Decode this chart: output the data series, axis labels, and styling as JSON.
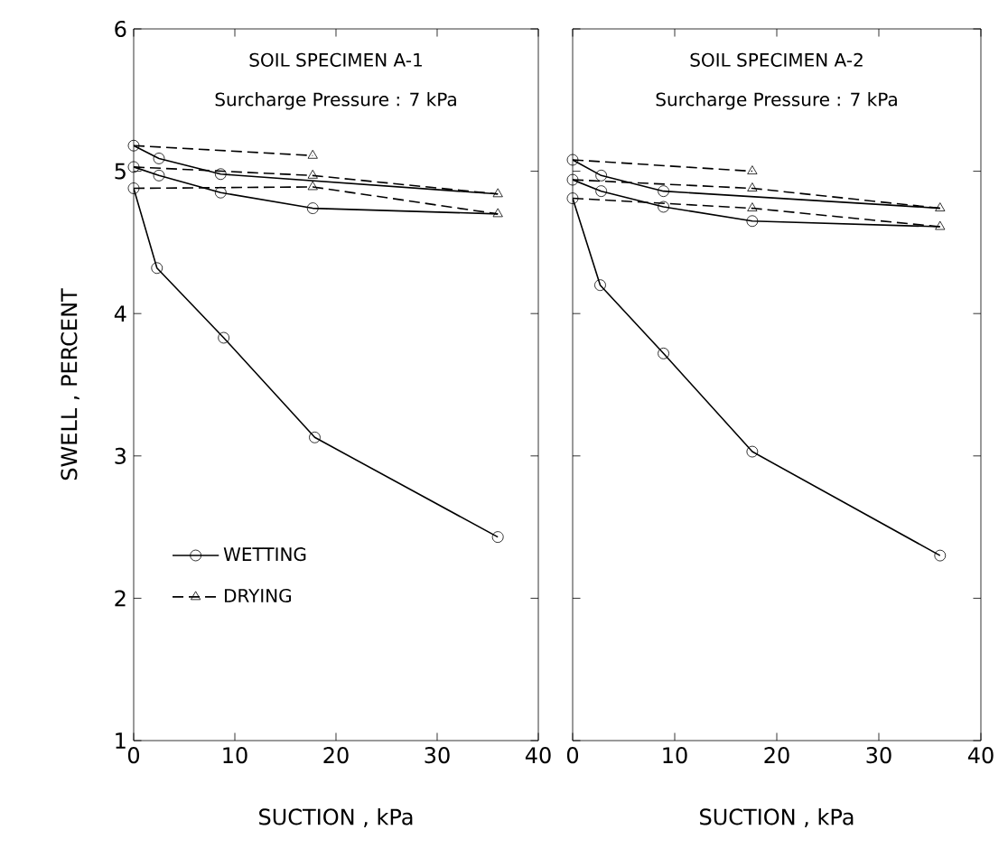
{
  "chart_data": [
    {
      "type": "line",
      "title": "SOIL SPECIMEN A-1",
      "subtitle": "Surcharge Pressure : 7 kPa",
      "xlabel": "SUCTION , kPa",
      "ylabel": "SWELL , PERCENT",
      "xlim": [
        0,
        40
      ],
      "xticks": [
        0,
        10,
        20,
        30,
        40
      ],
      "ylim": [
        1,
        6
      ],
      "yticks": [
        1,
        2,
        3,
        4,
        5,
        6
      ],
      "legend": "bottom left",
      "grid": false,
      "series": [
        {
          "name": "WETTING",
          "color": "#000000",
          "marker": "circle",
          "line_style": "solid",
          "x": [
            36,
            17.9,
            8.9,
            2.3,
            0
          ],
          "values": [
            2.43,
            3.13,
            3.83,
            4.32,
            4.88
          ]
        },
        {
          "name": "DRYING",
          "color": "#000000",
          "marker": "triangle",
          "line_style": "dashed",
          "x": [
            0,
            17.7,
            36
          ],
          "values": [
            4.88,
            4.89,
            4.7
          ]
        },
        {
          "color": "#000000",
          "marker": "circle",
          "line_style": "solid",
          "x": [
            36,
            17.7,
            8.6,
            2.5,
            0
          ],
          "values": [
            4.7,
            4.74,
            4.85,
            4.97,
            5.03
          ]
        },
        {
          "color": "#000000",
          "marker": "triangle",
          "line_style": "dashed",
          "x": [
            0,
            17.7,
            36
          ],
          "values": [
            5.03,
            4.97,
            4.84
          ]
        },
        {
          "color": "#000000",
          "marker": "circle",
          "line_style": "solid",
          "x": [
            36,
            8.6,
            2.5,
            0
          ],
          "values": [
            4.84,
            4.98,
            5.09,
            5.18
          ]
        },
        {
          "color": "#000000",
          "marker": "triangle",
          "line_style": "dashed",
          "x": [
            0,
            17.7
          ],
          "values": [
            5.18,
            5.11
          ]
        }
      ]
    },
    {
      "type": "line",
      "title": "SOIL SPECIMEN A-2",
      "subtitle": "Surcharge Pressure : 7 kPa",
      "xlabel": "SUCTION , kPa",
      "xlim": [
        0,
        40
      ],
      "xticks": [
        0,
        10,
        20,
        30,
        40
      ],
      "ylim": [
        1,
        6
      ],
      "yticks": [
        1,
        2,
        3,
        4,
        5,
        6
      ],
      "tick_labels": "x",
      "grid": false,
      "series": [
        {
          "color": "#000000",
          "marker": "circle",
          "line_style": "solid",
          "x": [
            36,
            17.6,
            8.9,
            2.7,
            0
          ],
          "values": [
            2.3,
            3.03,
            3.72,
            4.2,
            4.81
          ]
        },
        {
          "color": "#000000",
          "marker": "triangle",
          "line_style": "dashed",
          "x": [
            0,
            17.6,
            36
          ],
          "values": [
            4.81,
            4.74,
            4.61
          ]
        },
        {
          "color": "#000000",
          "marker": "circle",
          "line_style": "solid",
          "x": [
            36,
            17.6,
            8.9,
            2.8,
            0
          ],
          "values": [
            4.61,
            4.65,
            4.75,
            4.86,
            4.94
          ]
        },
        {
          "color": "#000000",
          "marker": "triangle",
          "line_style": "dashed",
          "x": [
            0,
            17.6,
            36
          ],
          "values": [
            4.94,
            4.88,
            4.74
          ]
        },
        {
          "color": "#000000",
          "marker": "circle",
          "line_style": "solid",
          "x": [
            36,
            8.9,
            2.8,
            0
          ],
          "values": [
            4.74,
            4.86,
            4.97,
            5.08
          ]
        },
        {
          "color": "#000000",
          "marker": "triangle",
          "line_style": "dashed",
          "x": [
            0,
            17.6
          ],
          "values": [
            5.08,
            5.0
          ]
        }
      ]
    }
  ]
}
